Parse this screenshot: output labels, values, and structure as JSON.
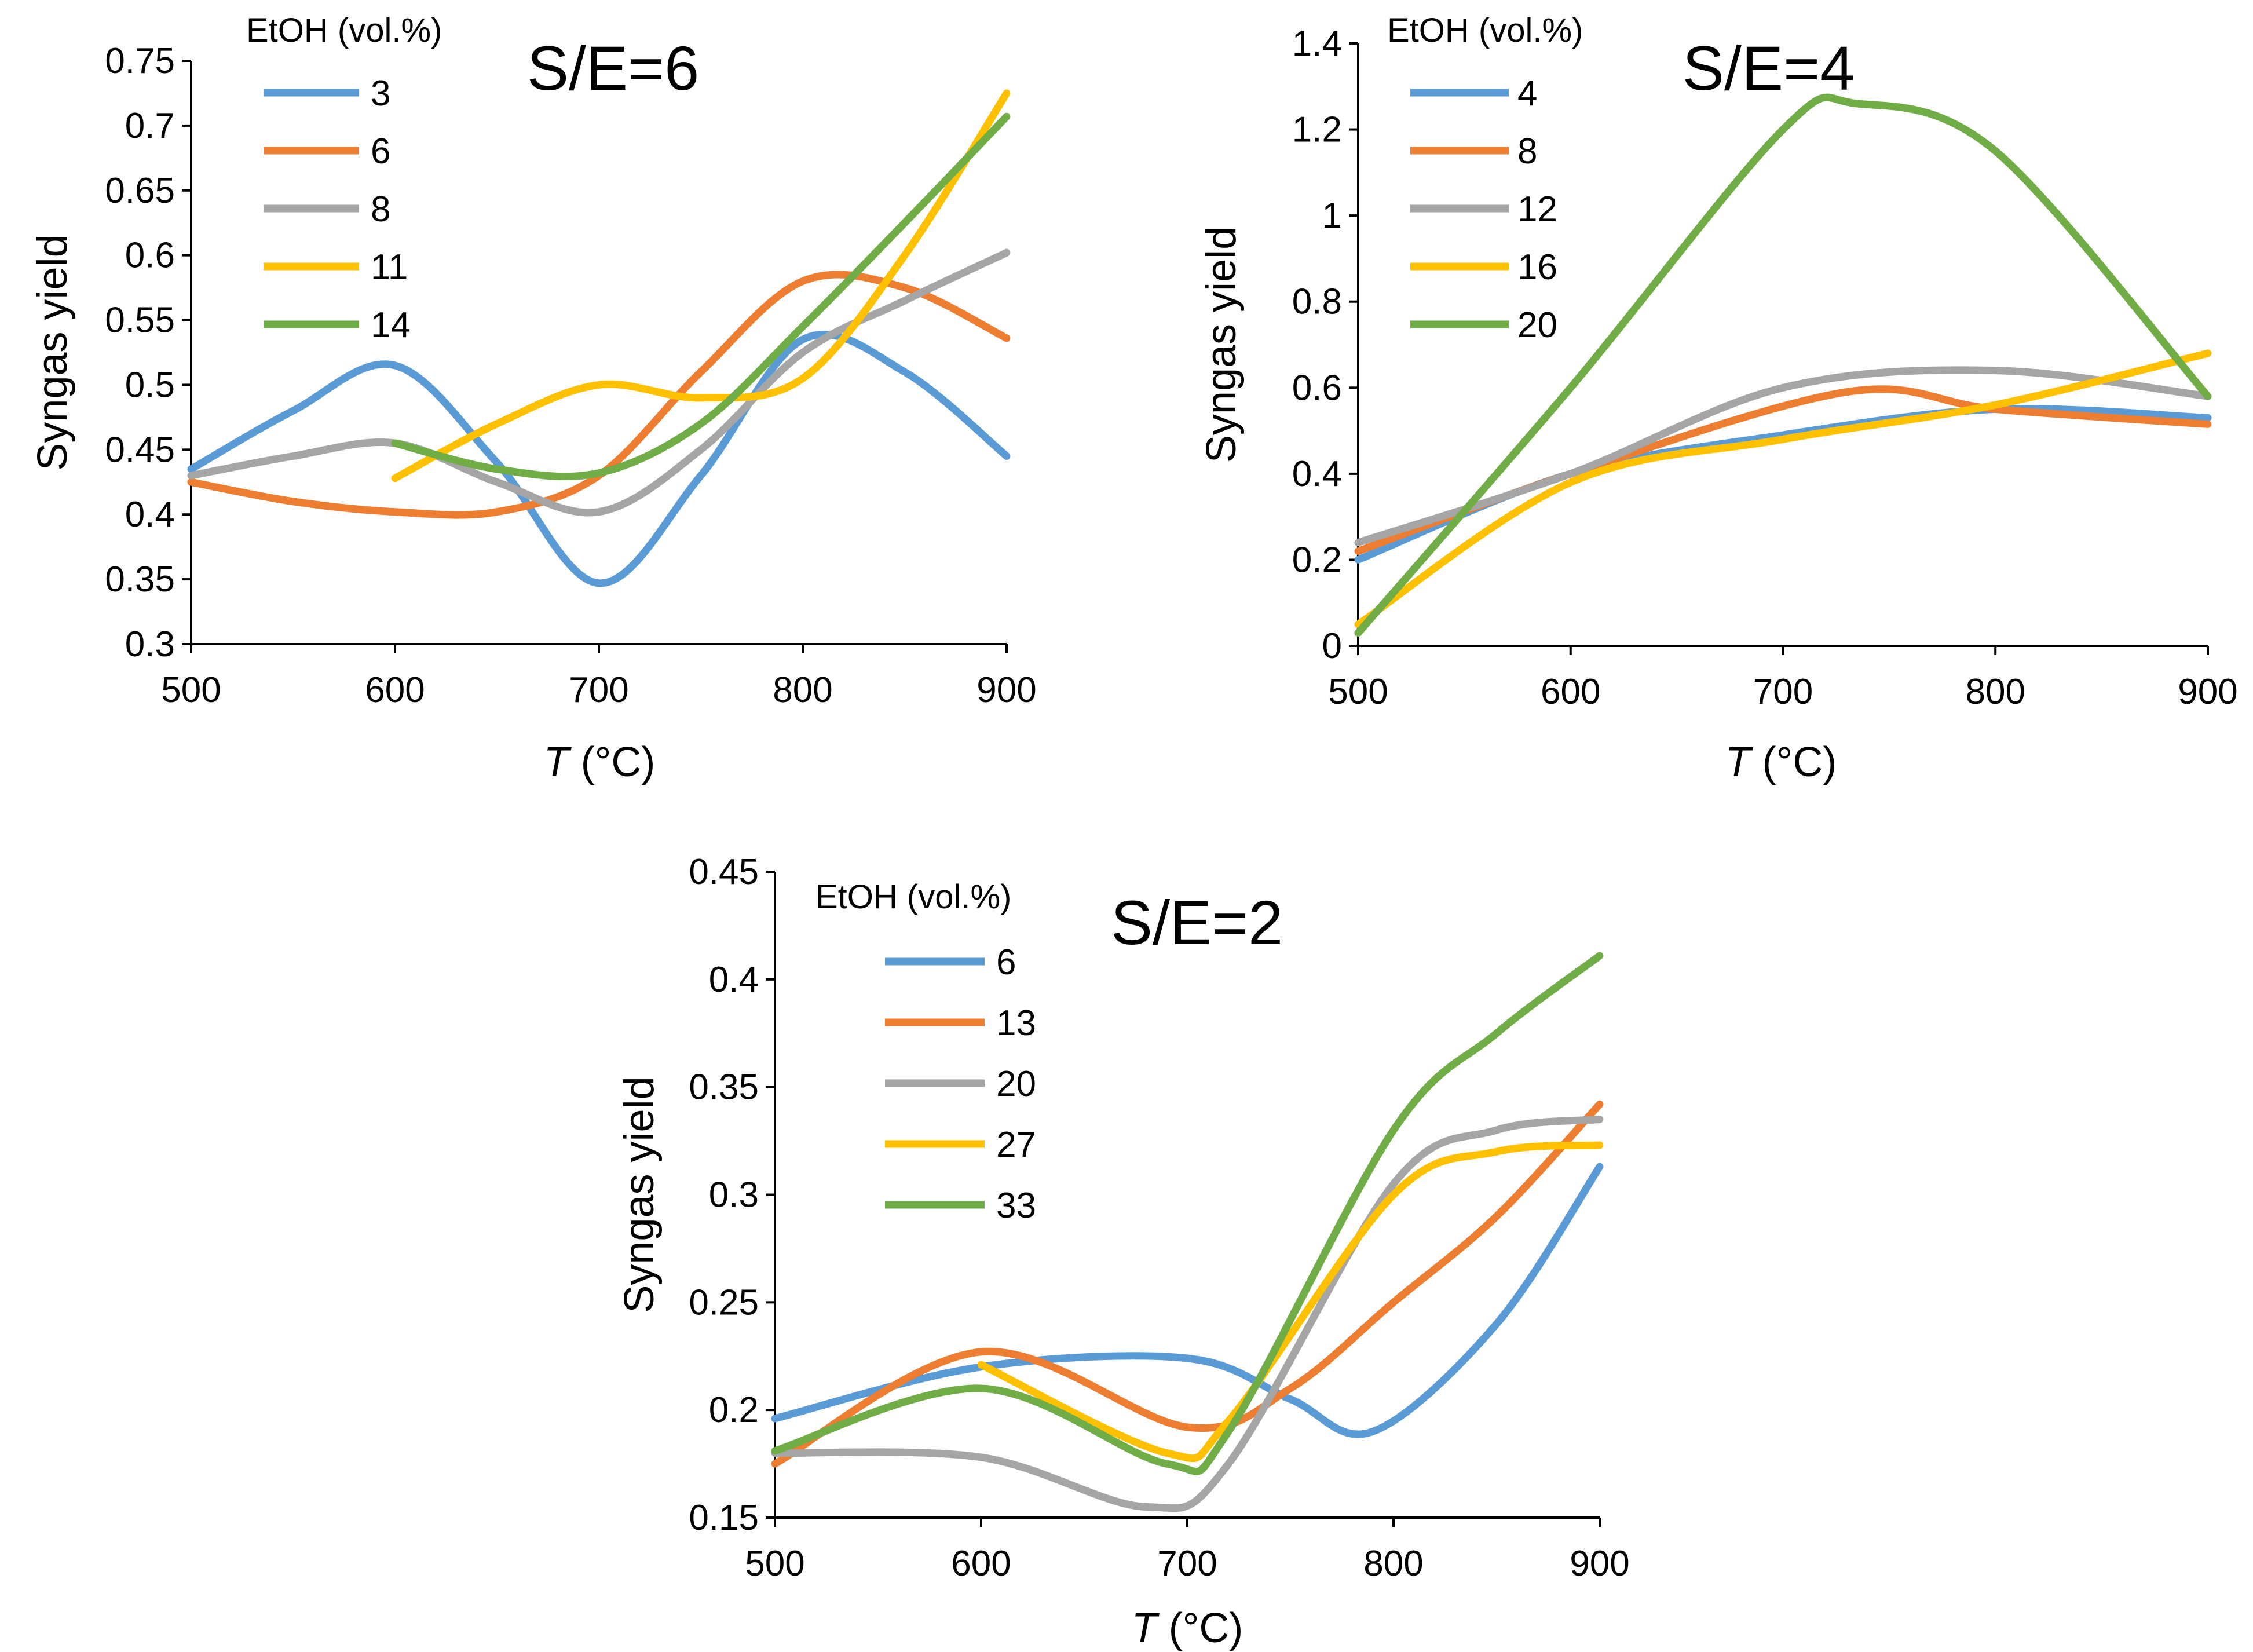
{
  "chart_data": [
    {
      "type": "line",
      "title": "S/E=6",
      "xlabel_var": "T",
      "xlabel_unit": " (°C)",
      "ylabel": "Syngas yield",
      "xlim": [
        500,
        900
      ],
      "ylim": [
        0.3,
        0.75
      ],
      "xticks": [
        500,
        600,
        700,
        800,
        900
      ],
      "xtick_labels": [
        "500",
        "600",
        "700",
        "800",
        "900"
      ],
      "yticks": [
        0.3,
        0.35,
        0.4,
        0.45,
        0.5,
        0.55,
        0.6,
        0.65,
        0.7,
        0.75
      ],
      "ytick_labels": [
        "0.3",
        "0.35",
        "0.4",
        "0.45",
        "0.5",
        "0.55",
        "0.6",
        "0.65",
        "0.7",
        "0.75"
      ],
      "legend_title": "EtOH (vol.%)",
      "series": [
        {
          "name": "3",
          "color": "#5B9BD5",
          "x": [
            500,
            550,
            600,
            650,
            700,
            750,
            800,
            850,
            900
          ],
          "y": [
            0.435,
            0.48,
            0.515,
            0.44,
            0.347,
            0.43,
            0.535,
            0.51,
            0.445
          ]
        },
        {
          "name": "6",
          "color": "#ED7D31",
          "x": [
            500,
            550,
            600,
            650,
            700,
            750,
            800,
            850,
            900
          ],
          "y": [
            0.425,
            0.41,
            0.402,
            0.402,
            0.43,
            0.51,
            0.58,
            0.575,
            0.536
          ]
        },
        {
          "name": "8",
          "color": "#A5A5A5",
          "x": [
            500,
            550,
            600,
            650,
            700,
            750,
            800,
            850,
            900
          ],
          "y": [
            0.43,
            0.445,
            0.455,
            0.425,
            0.402,
            0.45,
            0.525,
            0.565,
            0.602
          ]
        },
        {
          "name": "11",
          "color": "#FFC000",
          "x": [
            600,
            650,
            700,
            750,
            800,
            850,
            900
          ],
          "y": [
            0.428,
            0.47,
            0.5,
            0.49,
            0.505,
            0.6,
            0.725
          ]
        },
        {
          "name": "14",
          "color": "#70AD47",
          "x": [
            600,
            650,
            700,
            750,
            800,
            850,
            900
          ],
          "y": [
            0.455,
            0.435,
            0.432,
            0.47,
            0.545,
            0.625,
            0.707
          ]
        }
      ]
    },
    {
      "type": "line",
      "title": "S/E=4",
      "xlabel_var": "T",
      "xlabel_unit": " (°C)",
      "ylabel": "Syngas yield",
      "xlim": [
        500,
        900
      ],
      "ylim": [
        0,
        1.4
      ],
      "xticks": [
        500,
        600,
        700,
        800,
        900
      ],
      "xtick_labels": [
        "500",
        "600",
        "700",
        "800",
        "900"
      ],
      "yticks": [
        0,
        0.2,
        0.4,
        0.6,
        0.8,
        1.0,
        1.2,
        1.4
      ],
      "ytick_labels": [
        "0",
        "0.2",
        "0.4",
        "0.6",
        "0.8",
        "1",
        "1.2",
        "1.4"
      ],
      "legend_title": "EtOH (vol.%)",
      "series": [
        {
          "name": "4",
          "color": "#5B9BD5",
          "x": [
            500,
            600,
            700,
            800,
            900
          ],
          "y": [
            0.2,
            0.4,
            0.49,
            0.55,
            0.53
          ]
        },
        {
          "name": "8",
          "color": "#ED7D31",
          "x": [
            500,
            600,
            730,
            800,
            900
          ],
          "y": [
            0.22,
            0.4,
            0.59,
            0.55,
            0.515
          ]
        },
        {
          "name": "12",
          "color": "#A5A5A5",
          "x": [
            500,
            600,
            700,
            800,
            900
          ],
          "y": [
            0.24,
            0.4,
            0.6,
            0.64,
            0.58
          ]
        },
        {
          "name": "16",
          "color": "#FFC000",
          "x": [
            500,
            600,
            700,
            800,
            900
          ],
          "y": [
            0.05,
            0.38,
            0.48,
            0.56,
            0.68
          ]
        },
        {
          "name": "20",
          "color": "#70AD47",
          "x": [
            500,
            600,
            700,
            735,
            800,
            900
          ],
          "y": [
            0.03,
            0.6,
            1.2,
            1.26,
            1.15,
            0.58
          ]
        }
      ]
    },
    {
      "type": "line",
      "title": "S/E=2",
      "xlabel_var": "T",
      "xlabel_unit": " (°C)",
      "ylabel": "Syngas yield",
      "xlim": [
        500,
        900
      ],
      "ylim": [
        0.15,
        0.45
      ],
      "xticks": [
        500,
        600,
        700,
        800,
        900
      ],
      "xtick_labels": [
        "500",
        "600",
        "700",
        "800",
        "900"
      ],
      "yticks": [
        0.15,
        0.2,
        0.25,
        0.3,
        0.35,
        0.4,
        0.45
      ],
      "ytick_labels": [
        "0.15",
        "0.2",
        "0.25",
        "0.3",
        "0.35",
        "0.4",
        "0.45"
      ],
      "legend_title": "EtOH (vol.%)",
      "series": [
        {
          "name": "6",
          "color": "#5B9BD5",
          "x": [
            500,
            600,
            700,
            750,
            790,
            850,
            900
          ],
          "y": [
            0.196,
            0.22,
            0.224,
            0.205,
            0.19,
            0.24,
            0.313
          ]
        },
        {
          "name": "13",
          "color": "#ED7D31",
          "x": [
            500,
            600,
            700,
            750,
            800,
            850,
            900
          ],
          "y": [
            0.175,
            0.227,
            0.192,
            0.21,
            0.25,
            0.29,
            0.342
          ]
        },
        {
          "name": "20",
          "color": "#A5A5A5",
          "x": [
            500,
            600,
            680,
            720,
            800,
            850,
            900
          ],
          "y": [
            0.18,
            0.178,
            0.155,
            0.175,
            0.305,
            0.33,
            0.335
          ]
        },
        {
          "name": "27",
          "color": "#FFC000",
          "x": [
            600,
            690,
            720,
            800,
            850,
            900
          ],
          "y": [
            0.221,
            0.18,
            0.195,
            0.3,
            0.32,
            0.323
          ]
        },
        {
          "name": "33",
          "color": "#70AD47",
          "x": [
            500,
            600,
            690,
            720,
            800,
            850,
            900
          ],
          "y": [
            0.181,
            0.21,
            0.175,
            0.19,
            0.33,
            0.375,
            0.411
          ]
        }
      ]
    }
  ]
}
